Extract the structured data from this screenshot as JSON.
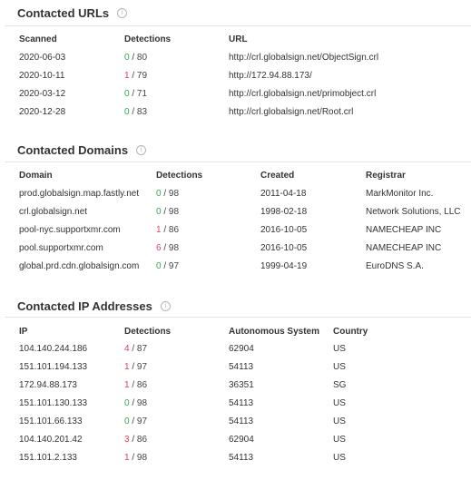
{
  "colors": {
    "malicious": "#e43f5a",
    "clean": "#2faa50",
    "divider": "#e4e4e4"
  },
  "contacted_urls": {
    "title": "Contacted URLs",
    "info_icon": "info-circle-icon",
    "columns": [
      "Scanned",
      "Detections",
      "URL"
    ],
    "rows": [
      {
        "scanned": "2020-06-03",
        "det": "0",
        "total": " / 80",
        "url": "http://crl.globalsign.net/ObjectSign.crl"
      },
      {
        "scanned": "2020-10-11",
        "det": "1",
        "total": " / 79",
        "url": "http://172.94.88.173/"
      },
      {
        "scanned": "2020-03-12",
        "det": "0",
        "total": " / 71",
        "url": "http://crl.globalsign.net/primobject.crl"
      },
      {
        "scanned": "2020-12-28",
        "det": "0",
        "total": " / 83",
        "url": "http://crl.globalsign.net/Root.crl"
      }
    ]
  },
  "contacted_domains": {
    "title": "Contacted Domains",
    "info_icon": "info-circle-icon",
    "columns": [
      "Domain",
      "Detections",
      "Created",
      "Registrar"
    ],
    "rows": [
      {
        "domain": "prod.globalsign.map.fastly.net",
        "det": "0",
        "total": " / 98",
        "created": "2011-04-18",
        "registrar": "MarkMonitor Inc."
      },
      {
        "domain": "crl.globalsign.net",
        "det": "0",
        "total": " / 98",
        "created": "1998-02-18",
        "registrar": "Network Solutions, LLC"
      },
      {
        "domain": "pool-nyc.supportxmr.com",
        "det": "1",
        "total": " / 86",
        "created": "2016-10-05",
        "registrar": "NAMECHEAP INC"
      },
      {
        "domain": "pool.supportxmr.com",
        "det": "6",
        "total": " / 98",
        "created": "2016-10-05",
        "registrar": "NAMECHEAP INC"
      },
      {
        "domain": "global.prd.cdn.globalsign.com",
        "det": "0",
        "total": " / 97",
        "created": "1999-04-19",
        "registrar": "EuroDNS S.A."
      }
    ]
  },
  "contacted_ips": {
    "title": "Contacted IP Addresses",
    "info_icon": "info-circle-icon",
    "columns": [
      "IP",
      "Detections",
      "Autonomous System",
      "Country"
    ],
    "rows": [
      {
        "ip": "104.140.244.186",
        "det": "4",
        "total": " / 87",
        "as": "62904",
        "country": "US"
      },
      {
        "ip": "151.101.194.133",
        "det": "1",
        "total": " / 97",
        "as": "54113",
        "country": "US"
      },
      {
        "ip": "172.94.88.173",
        "det": "1",
        "total": " / 86",
        "as": "36351",
        "country": "SG"
      },
      {
        "ip": "151.101.130.133",
        "det": "0",
        "total": " / 98",
        "as": "54113",
        "country": "US"
      },
      {
        "ip": "151.101.66.133",
        "det": "0",
        "total": " / 97",
        "as": "54113",
        "country": "US"
      },
      {
        "ip": "104.140.201.42",
        "det": "3",
        "total": " / 86",
        "as": "62904",
        "country": "US"
      },
      {
        "ip": "151.101.2.133",
        "det": "1",
        "total": " / 98",
        "as": "54113",
        "country": "US"
      }
    ]
  }
}
